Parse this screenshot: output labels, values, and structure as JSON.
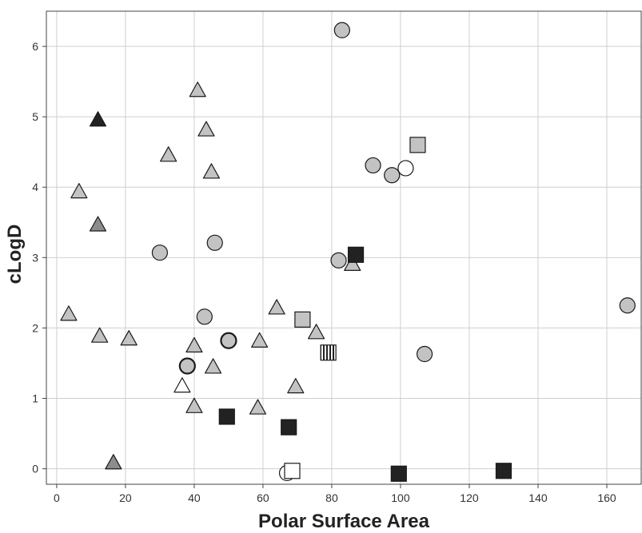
{
  "chart_data": {
    "type": "scatter",
    "title": "",
    "xlabel": "Polar Surface Area",
    "ylabel": "cLogD",
    "xlim": [
      -3,
      170
    ],
    "ylim": [
      -0.22,
      6.5
    ],
    "xticks": [
      0,
      20,
      40,
      60,
      80,
      100,
      120,
      140,
      160
    ],
    "yticks": [
      0,
      1,
      2,
      3,
      4,
      5,
      6
    ],
    "grid": true,
    "colors": {
      "light-gray": "#c3c3c3",
      "mid-gray": "#8c8c8c",
      "dark": "#222222",
      "white": "#ffffff",
      "stroke": "#1a1a1a"
    },
    "points": [
      {
        "x": 83,
        "y": 6.23,
        "shape": "circle",
        "fill": "light-gray"
      },
      {
        "x": 92,
        "y": 4.31,
        "shape": "circle",
        "fill": "light-gray"
      },
      {
        "x": 97.5,
        "y": 4.17,
        "shape": "circle",
        "fill": "light-gray"
      },
      {
        "x": 101.5,
        "y": 4.27,
        "shape": "circle",
        "fill": "white"
      },
      {
        "x": 46,
        "y": 3.21,
        "shape": "circle",
        "fill": "light-gray"
      },
      {
        "x": 30,
        "y": 3.07,
        "shape": "circle",
        "fill": "light-gray"
      },
      {
        "x": 82,
        "y": 2.96,
        "shape": "circle",
        "fill": "light-gray"
      },
      {
        "x": 166,
        "y": 2.32,
        "shape": "circle",
        "fill": "light-gray"
      },
      {
        "x": 43,
        "y": 2.16,
        "shape": "circle",
        "fill": "light-gray"
      },
      {
        "x": 50,
        "y": 1.82,
        "shape": "circle",
        "fill": "light-gray",
        "thick": true
      },
      {
        "x": 38,
        "y": 1.46,
        "shape": "circle",
        "fill": "light-gray",
        "thick": true
      },
      {
        "x": 107,
        "y": 1.63,
        "shape": "circle",
        "fill": "light-gray"
      },
      {
        "x": 67,
        "y": -0.06,
        "shape": "circle",
        "fill": "white"
      },
      {
        "x": 41,
        "y": 5.37,
        "shape": "triangle",
        "fill": "light-gray"
      },
      {
        "x": 12,
        "y": 4.95,
        "shape": "triangle",
        "fill": "dark"
      },
      {
        "x": 43.5,
        "y": 4.81,
        "shape": "triangle",
        "fill": "light-gray"
      },
      {
        "x": 32.5,
        "y": 4.45,
        "shape": "triangle",
        "fill": "light-gray"
      },
      {
        "x": 45,
        "y": 4.21,
        "shape": "triangle",
        "fill": "light-gray"
      },
      {
        "x": 6.5,
        "y": 3.93,
        "shape": "triangle",
        "fill": "light-gray"
      },
      {
        "x": 12,
        "y": 3.46,
        "shape": "triangle",
        "fill": "mid-gray"
      },
      {
        "x": 86,
        "y": 2.9,
        "shape": "triangle",
        "fill": "light-gray"
      },
      {
        "x": 3.5,
        "y": 2.19,
        "shape": "triangle",
        "fill": "light-gray"
      },
      {
        "x": 64,
        "y": 2.28,
        "shape": "triangle",
        "fill": "light-gray"
      },
      {
        "x": 12.5,
        "y": 1.88,
        "shape": "triangle",
        "fill": "light-gray"
      },
      {
        "x": 21,
        "y": 1.84,
        "shape": "triangle",
        "fill": "light-gray"
      },
      {
        "x": 59,
        "y": 1.81,
        "shape": "triangle",
        "fill": "light-gray"
      },
      {
        "x": 75.5,
        "y": 1.93,
        "shape": "triangle",
        "fill": "light-gray"
      },
      {
        "x": 40,
        "y": 1.74,
        "shape": "triangle",
        "fill": "light-gray"
      },
      {
        "x": 45.5,
        "y": 1.44,
        "shape": "triangle",
        "fill": "light-gray"
      },
      {
        "x": 36.5,
        "y": 1.17,
        "shape": "triangle",
        "fill": "white"
      },
      {
        "x": 69.5,
        "y": 1.16,
        "shape": "triangle",
        "fill": "light-gray"
      },
      {
        "x": 40,
        "y": 0.88,
        "shape": "triangle",
        "fill": "light-gray"
      },
      {
        "x": 58.5,
        "y": 0.86,
        "shape": "triangle",
        "fill": "light-gray"
      },
      {
        "x": 16.5,
        "y": 0.08,
        "shape": "triangle",
        "fill": "mid-gray"
      },
      {
        "x": 105,
        "y": 4.6,
        "shape": "square",
        "fill": "light-gray"
      },
      {
        "x": 87,
        "y": 3.04,
        "shape": "square",
        "fill": "dark"
      },
      {
        "x": 71.5,
        "y": 2.12,
        "shape": "square",
        "fill": "light-gray"
      },
      {
        "x": 79,
        "y": 1.65,
        "shape": "square",
        "fill": "striped"
      },
      {
        "x": 49.5,
        "y": 0.74,
        "shape": "square",
        "fill": "dark"
      },
      {
        "x": 67.5,
        "y": 0.59,
        "shape": "square",
        "fill": "dark"
      },
      {
        "x": 68.5,
        "y": -0.03,
        "shape": "square",
        "fill": "white"
      },
      {
        "x": 99.5,
        "y": -0.07,
        "shape": "square",
        "fill": "dark"
      },
      {
        "x": 130,
        "y": -0.03,
        "shape": "square",
        "fill": "dark"
      }
    ]
  }
}
